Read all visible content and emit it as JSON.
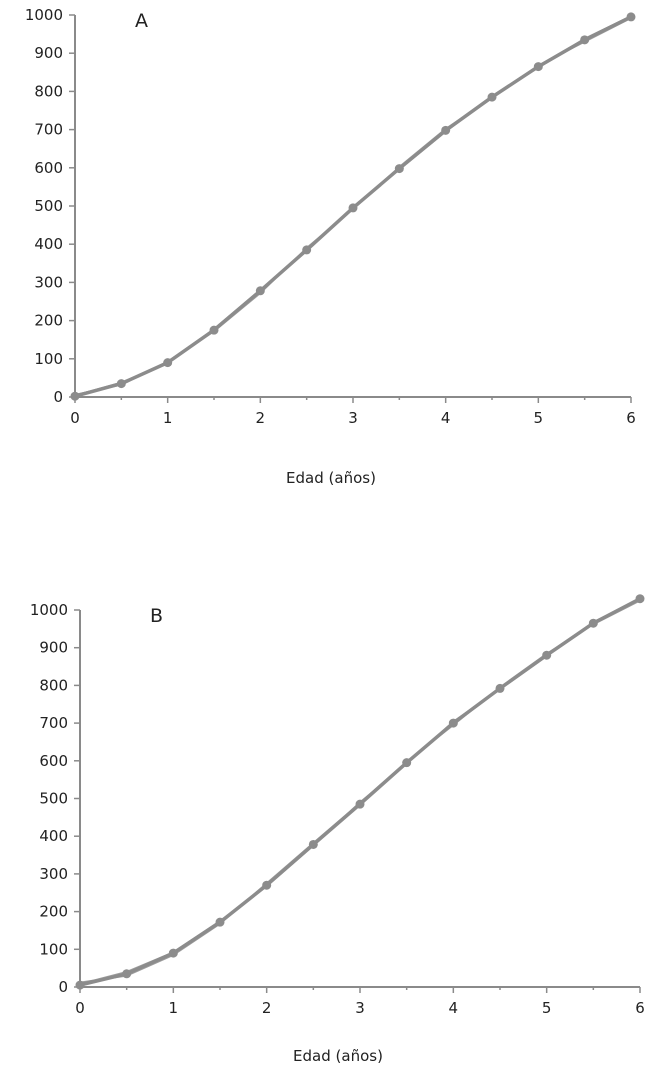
{
  "series_color": "#8c8c8c",
  "axis_color": "#8a8a8a",
  "chart_data": [
    {
      "type": "line",
      "panel_label": "A",
      "xlabel": "Edad (años)",
      "ylabel": "",
      "xlim": [
        0,
        6
      ],
      "ylim": [
        0,
        1000
      ],
      "x_ticks": [
        "0",
        "1",
        "2",
        "3",
        "4",
        "5",
        "6"
      ],
      "y_ticks": [
        "0",
        "100",
        "200",
        "300",
        "400",
        "500",
        "600",
        "700",
        "800",
        "900",
        "1000"
      ],
      "grid": false,
      "series": [
        {
          "x": [
            0,
            0.5,
            1,
            1.5,
            2,
            2.5,
            3,
            3.5,
            4,
            4.5,
            5,
            5.5,
            6
          ],
          "values": [
            2,
            35,
            90,
            175,
            278,
            385,
            495,
            598,
            698,
            785,
            865,
            935,
            995
          ]
        },
        {
          "x": [
            0,
            0.5,
            1,
            1.5,
            2,
            2.5,
            3,
            3.5,
            4,
            4.5,
            5,
            5.5,
            6
          ],
          "values": [
            6,
            32,
            93,
            172,
            272,
            390,
            492,
            602,
            702,
            782,
            868,
            930,
            992
          ]
        },
        {
          "x": [
            0,
            0.5,
            1,
            1.5,
            2,
            2.5,
            3,
            3.5,
            4,
            4.5,
            5,
            5.5,
            6
          ],
          "values": [
            4,
            38,
            88,
            178,
            280,
            382,
            498,
            596,
            695,
            788,
            862,
            938,
            997
          ]
        }
      ]
    },
    {
      "type": "line",
      "panel_label": "B",
      "xlabel": "Edad (años)",
      "ylabel": "",
      "xlim": [
        0,
        6
      ],
      "ylim": [
        0,
        1000
      ],
      "x_ticks": [
        "0",
        "1",
        "2",
        "3",
        "4",
        "5",
        "6"
      ],
      "y_ticks": [
        "0",
        "100",
        "200",
        "300",
        "400",
        "500",
        "600",
        "700",
        "800",
        "900",
        "1000"
      ],
      "grid": false,
      "series": [
        {
          "x": [
            0,
            0.5,
            1,
            1.5,
            2,
            2.5,
            3,
            3.5,
            4,
            4.5,
            5,
            5.5,
            6
          ],
          "values": [
            5,
            35,
            90,
            172,
            270,
            378,
            485,
            595,
            700,
            792,
            880,
            965,
            1030
          ]
        },
        {
          "x": [
            0,
            0.5,
            1,
            1.5,
            2,
            2.5,
            3,
            3.5,
            4,
            4.5,
            5,
            5.5,
            6
          ],
          "values": [
            12,
            30,
            85,
            168,
            275,
            382,
            488,
            598,
            695,
            795,
            884,
            962,
            1025
          ]
        },
        {
          "x": [
            0,
            0.5,
            1,
            1.5,
            2,
            2.5,
            3,
            3.5,
            4,
            4.5,
            5,
            5.5,
            6
          ],
          "values": [
            8,
            40,
            92,
            175,
            268,
            375,
            490,
            592,
            704,
            790,
            878,
            968,
            1028
          ]
        }
      ]
    }
  ]
}
